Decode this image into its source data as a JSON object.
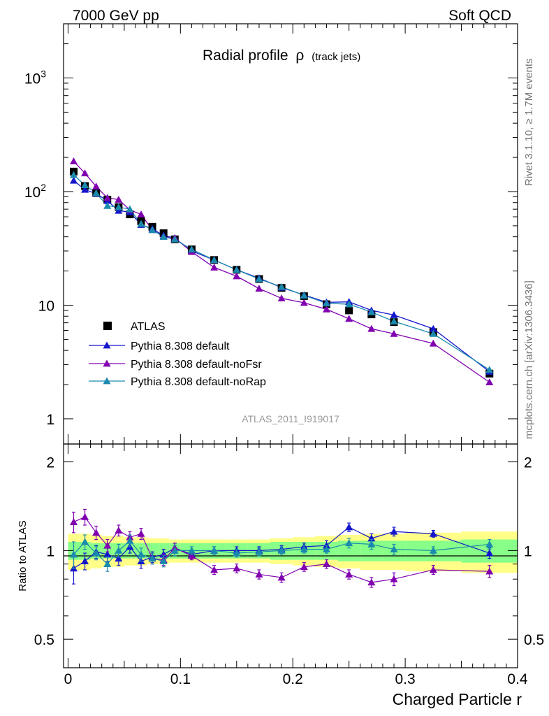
{
  "header": {
    "left": "7000 GeV pp",
    "right": "Soft QCD"
  },
  "side_text": {
    "rivet": "Rivet 3.1.10, ≥ 1.7M events",
    "mcplots": "mcplots.cern.ch [arXiv:1306.3436]"
  },
  "title": {
    "main": "Radial profile",
    "symbol": "ρ",
    "sub": "(track jets)"
  },
  "analysis_label": "ATLAS_2011_I919017",
  "legend": [
    {
      "label": "ATLAS"
    },
    {
      "label": "Pythia 8.308 default"
    },
    {
      "label": "Pythia 8.308 default-noFsr"
    },
    {
      "label": "Pythia 8.308 default-noRap"
    }
  ],
  "colors": {
    "data": "#000000",
    "default": "#1515cc",
    "noFsr": "#8000b0",
    "noRap": "#1a8aad",
    "band_inner": "#88ff88",
    "band_outer": "#ffff88"
  },
  "main_yticks": [
    {
      "value": 1,
      "label": "1"
    },
    {
      "value": 10,
      "label": "10"
    },
    {
      "value": 100,
      "label": "10",
      "sup": "2"
    },
    {
      "value": 1000,
      "label": "10",
      "sup": "3"
    }
  ],
  "ratio_ylabel": "Ratio to ATLAS",
  "ratio_yticks": [
    {
      "value": 0.5,
      "label": "0.5"
    },
    {
      "value": 1,
      "label": "1"
    },
    {
      "value": 2,
      "label": "2"
    }
  ],
  "xticks": [
    {
      "value": 0,
      "label": "0"
    },
    {
      "value": 0.1,
      "label": "0.1"
    },
    {
      "value": 0.2,
      "label": "0.2"
    },
    {
      "value": 0.3,
      "label": "0.3"
    },
    {
      "value": 0.4,
      "label": "0.4"
    }
  ],
  "xlabel": "Charged Particle r",
  "chart_data": {
    "type": "scatter",
    "title": "Radial profile ρ (track jets)",
    "xlabel": "Charged Particle r",
    "ylabel": "",
    "xlim": [
      -0.004,
      0.4
    ],
    "ylim": [
      0.6,
      3000
    ],
    "yscale": "log",
    "ratio_ylabel": "Ratio to ATLAS",
    "ratio_ylim": [
      0.4,
      2.3
    ],
    "ratio_yscale": "log",
    "legend_position": "lower-left",
    "x": [
      0.005,
      0.015,
      0.025,
      0.035,
      0.045,
      0.055,
      0.065,
      0.075,
      0.085,
      0.095,
      0.11,
      0.13,
      0.15,
      0.17,
      0.19,
      0.21,
      0.23,
      0.25,
      0.27,
      0.29,
      0.325,
      0.375
    ],
    "x_bins": [
      [
        0.0,
        0.01
      ],
      [
        0.01,
        0.02
      ],
      [
        0.02,
        0.03
      ],
      [
        0.03,
        0.04
      ],
      [
        0.04,
        0.05
      ],
      [
        0.05,
        0.06
      ],
      [
        0.06,
        0.07
      ],
      [
        0.07,
        0.08
      ],
      [
        0.08,
        0.09
      ],
      [
        0.09,
        0.1
      ],
      [
        0.1,
        0.12
      ],
      [
        0.12,
        0.14
      ],
      [
        0.14,
        0.16
      ],
      [
        0.16,
        0.18
      ],
      [
        0.18,
        0.2
      ],
      [
        0.2,
        0.22
      ],
      [
        0.22,
        0.24
      ],
      [
        0.24,
        0.26
      ],
      [
        0.26,
        0.28
      ],
      [
        0.28,
        0.3
      ],
      [
        0.3,
        0.35
      ],
      [
        0.35,
        0.4
      ]
    ],
    "series": [
      {
        "name": "ATLAS",
        "key": "data",
        "marker": "square",
        "values": [
          150,
          112,
          97,
          85,
          73,
          63,
          55,
          49,
          43,
          38,
          31,
          25,
          20.5,
          17,
          14.2,
          12,
          10.2,
          9,
          8.3,
          7.1,
          5.8,
          2.5
        ],
        "band_inner": [
          0.07,
          0.07,
          0.06,
          0.06,
          0.06,
          0.06,
          0.06,
          0.06,
          0.06,
          0.06,
          0.06,
          0.06,
          0.06,
          0.06,
          0.07,
          0.07,
          0.07,
          0.08,
          0.08,
          0.08,
          0.08,
          0.09
        ],
        "band_outer": [
          0.14,
          0.14,
          0.13,
          0.12,
          0.12,
          0.11,
          0.11,
          0.1,
          0.1,
          0.09,
          0.09,
          0.09,
          0.09,
          0.09,
          0.1,
          0.11,
          0.12,
          0.13,
          0.14,
          0.14,
          0.15,
          0.16
        ]
      },
      {
        "name": "Pythia 8.308 default",
        "key": "default",
        "marker": "triangle",
        "values": [
          125,
          104,
          96,
          83,
          68,
          66,
          51,
          47,
          41,
          39,
          30,
          25,
          20.5,
          17.3,
          14.3,
          12.3,
          10.6,
          10.7,
          9,
          8.2,
          6.2,
          2.6
        ],
        "ratios": [
          0.87,
          0.92,
          0.99,
          0.97,
          0.94,
          1.03,
          0.92,
          0.95,
          0.97,
          1.02,
          0.97,
          1.0,
          1.0,
          1.0,
          1.01,
          1.03,
          1.04,
          1.2,
          1.1,
          1.16,
          1.14,
          0.98
        ],
        "ratio_err": [
          0.1,
          0.06,
          0.05,
          0.05,
          0.05,
          0.05,
          0.05,
          0.04,
          0.04,
          0.04,
          0.03,
          0.03,
          0.03,
          0.03,
          0.03,
          0.03,
          0.04,
          0.04,
          0.04,
          0.04,
          0.03,
          0.04
        ]
      },
      {
        "name": "Pythia 8.308 default-noFsr",
        "key": "noFsr",
        "marker": "triangle",
        "values": [
          185,
          145,
          111,
          88,
          85,
          69,
          63,
          46,
          40,
          39,
          29.5,
          21.5,
          18,
          14,
          11.5,
          10.5,
          9.2,
          7.6,
          6.2,
          5.6,
          4.6,
          2.1
        ],
        "ratios": [
          1.25,
          1.3,
          1.15,
          1.04,
          1.17,
          1.11,
          1.14,
          0.94,
          0.93,
          1.02,
          0.96,
          0.86,
          0.87,
          0.83,
          0.81,
          0.88,
          0.9,
          0.83,
          0.78,
          0.8,
          0.86,
          0.85
        ],
        "ratio_err": [
          0.1,
          0.08,
          0.06,
          0.05,
          0.05,
          0.05,
          0.05,
          0.04,
          0.04,
          0.04,
          0.03,
          0.03,
          0.03,
          0.03,
          0.03,
          0.03,
          0.03,
          0.03,
          0.03,
          0.04,
          0.03,
          0.04
        ]
      },
      {
        "name": "Pythia 8.308 default-noRap",
        "key": "noRap",
        "marker": "triangle",
        "values": [
          140,
          114,
          97,
          75,
          73,
          70,
          52,
          46,
          40,
          38,
          31,
          25,
          20.5,
          17,
          14.5,
          12.2,
          10.4,
          10.2,
          8.7,
          7.2,
          5.6,
          2.7
        ],
        "ratios": [
          0.97,
          1.07,
          0.98,
          0.9,
          1.0,
          1.08,
          0.97,
          0.94,
          0.92,
          1.0,
          1.0,
          1.0,
          0.98,
          0.99,
          1.0,
          1.01,
          1.01,
          1.06,
          1.05,
          1.01,
          1.0,
          1.05
        ],
        "ratio_err": [
          0.1,
          0.06,
          0.05,
          0.05,
          0.05,
          0.05,
          0.05,
          0.04,
          0.04,
          0.04,
          0.03,
          0.03,
          0.03,
          0.03,
          0.03,
          0.03,
          0.03,
          0.04,
          0.04,
          0.04,
          0.03,
          0.04
        ]
      }
    ]
  }
}
